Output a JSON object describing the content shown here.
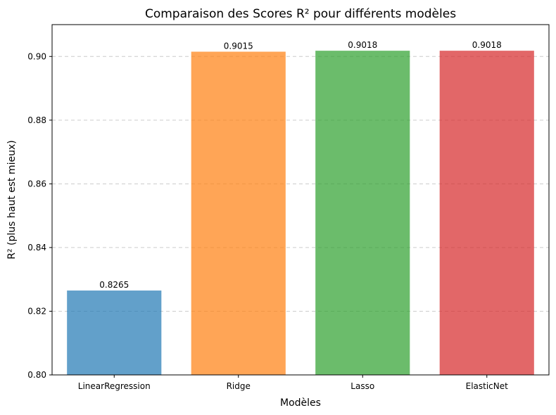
{
  "chart_data": {
    "type": "bar",
    "title": "Comparaison des Scores R² pour différents modèles",
    "xlabel": "Modèles",
    "ylabel": "R² (plus haut est mieux)",
    "categories": [
      "LinearRegression",
      "Ridge",
      "Lasso",
      "ElasticNet"
    ],
    "values": [
      0.8265,
      0.9015,
      0.9018,
      0.9018
    ],
    "value_labels": [
      "0.8265",
      "0.9015",
      "0.9018",
      "0.9018"
    ],
    "colors": [
      "#1f77b4",
      "#ff7f0e",
      "#2ca02c",
      "#d62728"
    ],
    "bar_opacity": 0.7,
    "ylim": [
      0.8,
      0.91
    ],
    "yticks": [
      0.8,
      0.82,
      0.84,
      0.86,
      0.88,
      0.9
    ],
    "ytick_labels": [
      "0.80",
      "0.82",
      "0.84",
      "0.86",
      "0.88",
      "0.90"
    ],
    "grid": "y-dashed",
    "legend": "none"
  }
}
